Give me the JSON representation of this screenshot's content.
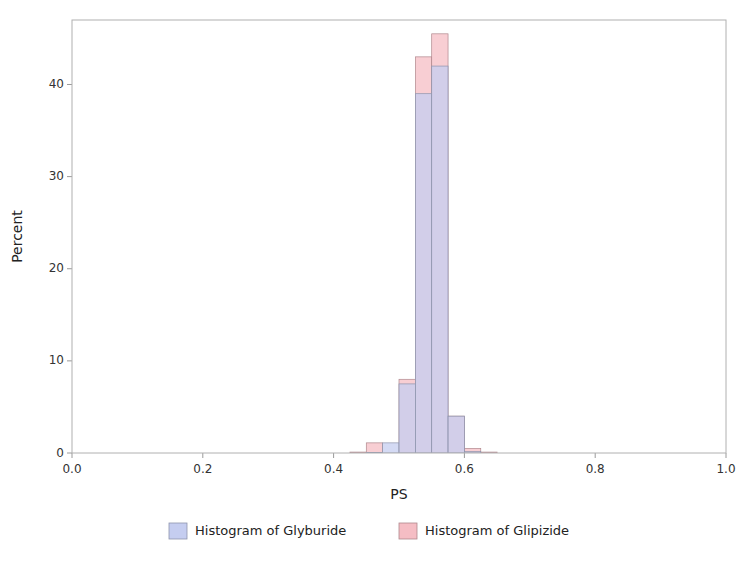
{
  "chart_data": {
    "type": "histogram",
    "xlabel": "PS",
    "ylabel": "Percent",
    "bins": [
      0.425,
      0.45,
      0.475,
      0.5,
      0.525,
      0.55,
      0.575,
      0.6,
      0.625,
      0.65,
      0.675,
      0.7
    ],
    "series": [
      {
        "name": "Histogram of Glipizide",
        "color": "#f5bdc4",
        "values": [
          0.1,
          1.1,
          0.0,
          8.0,
          43.0,
          45.5,
          4.0,
          0.5,
          0.1,
          0.0,
          0.0
        ]
      },
      {
        "name": "Histogram of Glyburide",
        "color": "#c5cdf0",
        "values": [
          0.0,
          0.07,
          1.1,
          7.5,
          39.0,
          42.0,
          4.0,
          0.15,
          0.0,
          0.0,
          0.0
        ]
      }
    ],
    "xlim": [
      0.0,
      1.0
    ],
    "ylim": [
      0,
      47
    ],
    "xticks": [
      {
        "value": 0.0,
        "label": "0.0"
      },
      0.2,
      0.4,
      0.6,
      0.8,
      {
        "value": 1.0,
        "label": "1.0"
      }
    ],
    "yticks": [
      0,
      10,
      20,
      30,
      40
    ],
    "grid": false,
    "legend": "bottom"
  }
}
